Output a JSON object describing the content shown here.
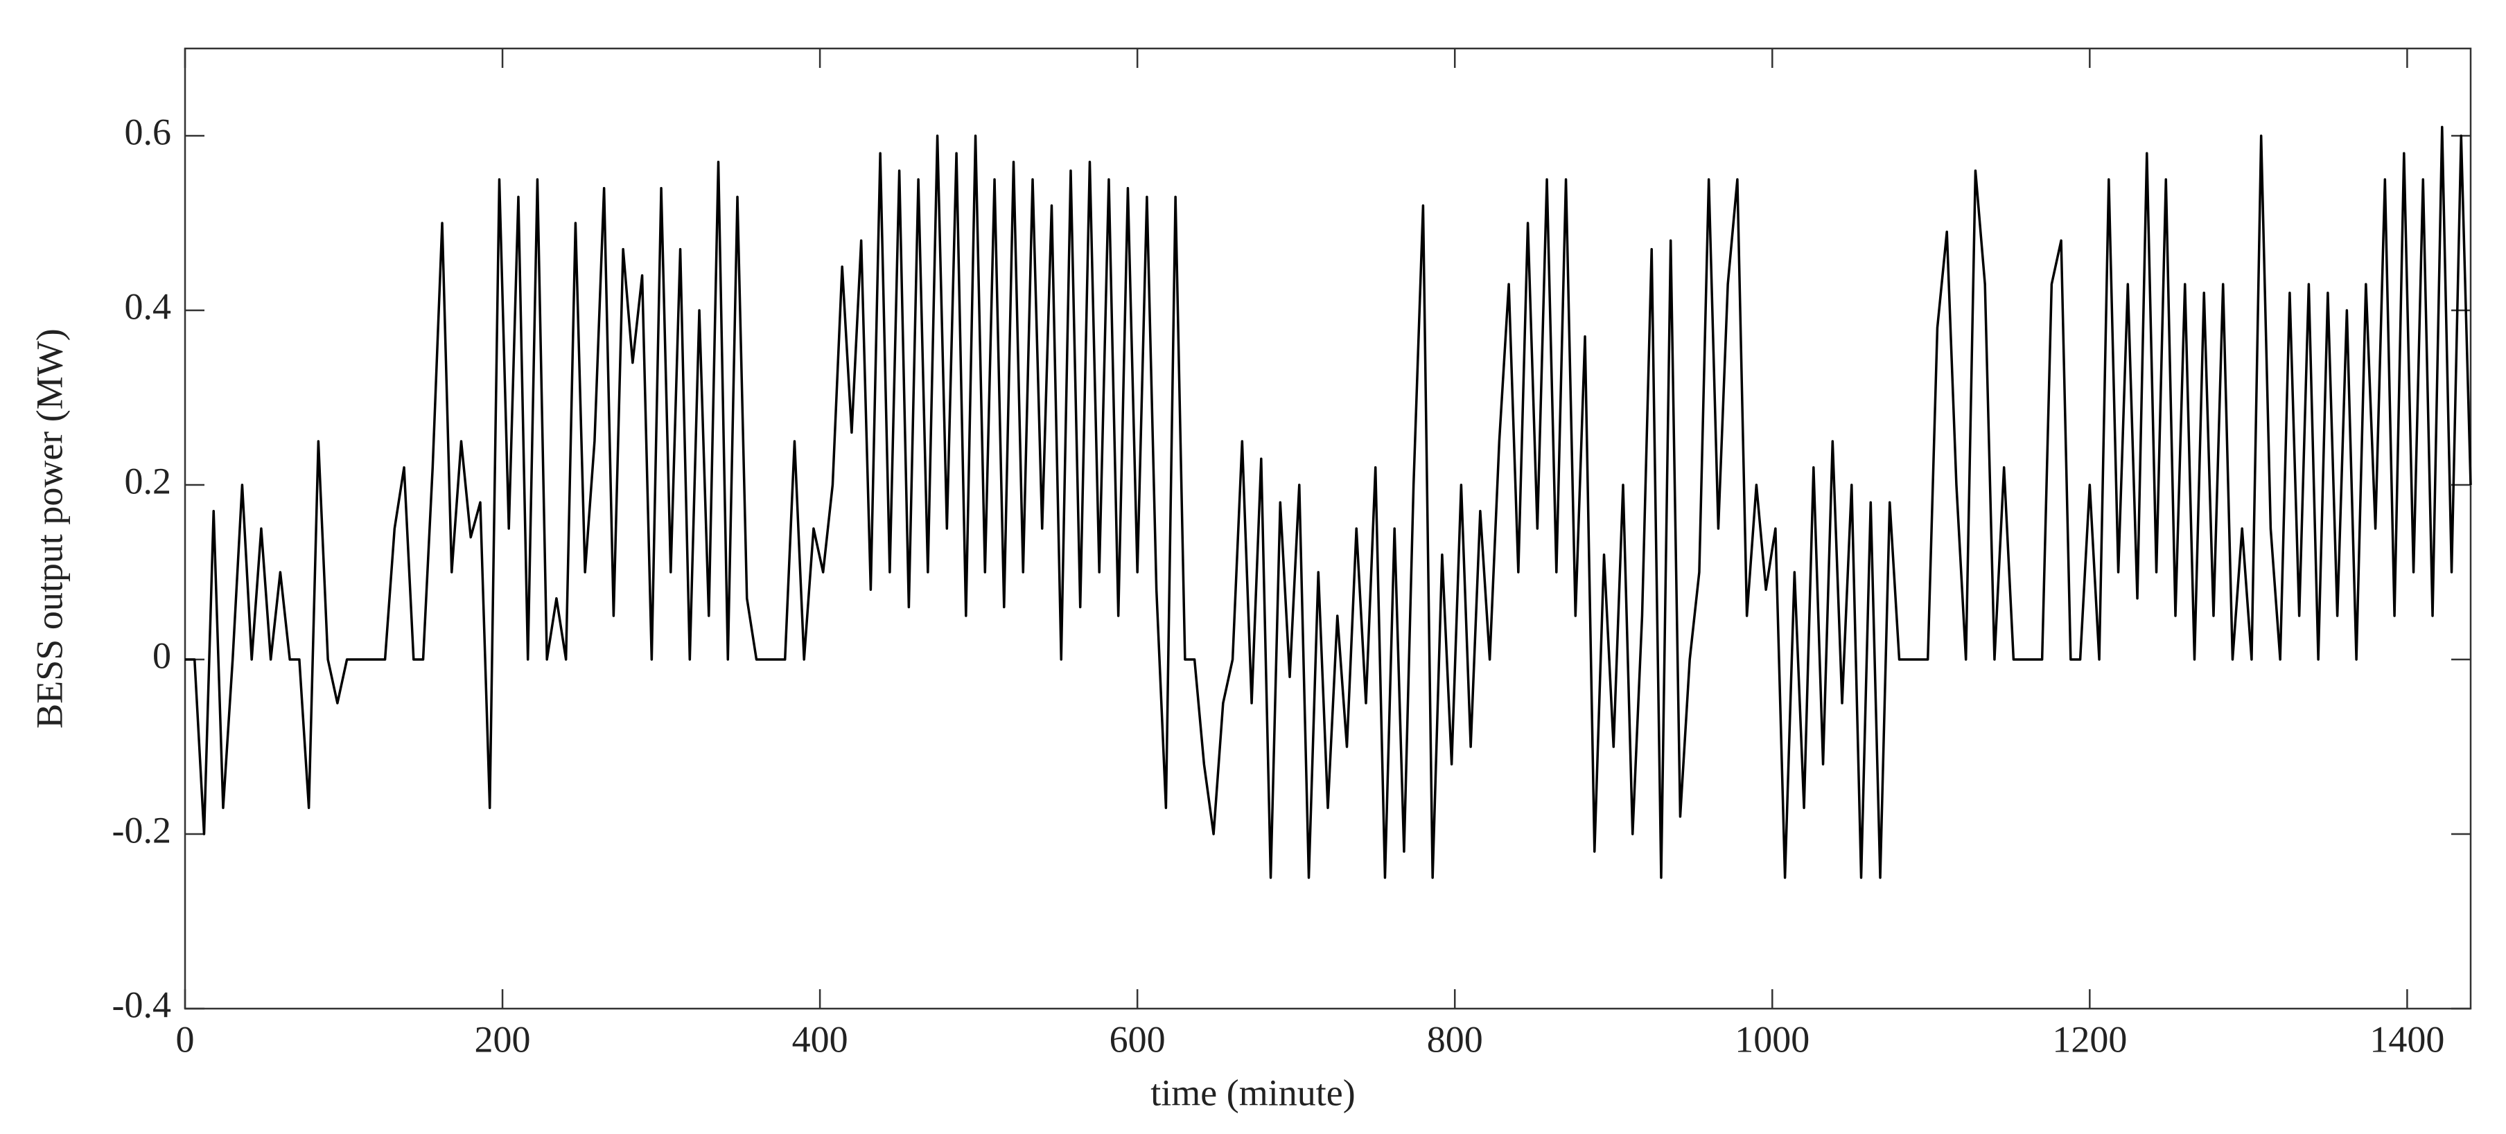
{
  "chart_data": {
    "type": "line",
    "xlabel": "time (minute)",
    "ylabel": "BESS output power (MW)",
    "xlim": [
      0,
      1440
    ],
    "xticks": [
      0,
      200,
      400,
      600,
      800,
      1000,
      1200,
      1400
    ],
    "ylim": [
      -0.4,
      0.7
    ],
    "yticks": [
      -0.4,
      -0.2,
      0,
      0.2,
      0.4,
      0.6
    ],
    "x": [
      0,
      6,
      12,
      18,
      24,
      30,
      36,
      42,
      48,
      54,
      60,
      66,
      72,
      78,
      84,
      90,
      96,
      102,
      108,
      114,
      120,
      126,
      132,
      138,
      144,
      150,
      156,
      162,
      168,
      174,
      180,
      186,
      192,
      198,
      204,
      210,
      216,
      222,
      228,
      234,
      240,
      246,
      252,
      258,
      264,
      270,
      276,
      282,
      288,
      294,
      300,
      306,
      312,
      318,
      324,
      330,
      336,
      342,
      348,
      354,
      360,
      366,
      372,
      378,
      384,
      390,
      396,
      402,
      408,
      414,
      420,
      426,
      432,
      438,
      444,
      450,
      456,
      462,
      468,
      474,
      480,
      486,
      492,
      498,
      504,
      510,
      516,
      522,
      528,
      534,
      540,
      546,
      552,
      558,
      564,
      570,
      576,
      582,
      588,
      594,
      600,
      606,
      612,
      618,
      624,
      630,
      636,
      642,
      648,
      654,
      660,
      666,
      672,
      678,
      684,
      690,
      696,
      702,
      708,
      714,
      720,
      726,
      732,
      738,
      744,
      750,
      756,
      762,
      768,
      774,
      780,
      786,
      792,
      798,
      804,
      810,
      816,
      822,
      828,
      834,
      840,
      846,
      852,
      858,
      864,
      870,
      876,
      882,
      888,
      894,
      900,
      906,
      912,
      918,
      924,
      930,
      936,
      942,
      948,
      954,
      960,
      966,
      972,
      978,
      984,
      990,
      996,
      1002,
      1008,
      1014,
      1020,
      1026,
      1032,
      1038,
      1044,
      1050,
      1056,
      1062,
      1068,
      1074,
      1080,
      1086,
      1092,
      1098,
      1104,
      1110,
      1116,
      1122,
      1128,
      1134,
      1140,
      1146,
      1152,
      1158,
      1164,
      1170,
      1176,
      1182,
      1188,
      1194,
      1200,
      1206,
      1212,
      1218,
      1224,
      1230,
      1236,
      1242,
      1248,
      1254,
      1260,
      1266,
      1272,
      1278,
      1284,
      1290,
      1296,
      1302,
      1308,
      1314,
      1320,
      1326,
      1332,
      1338,
      1344,
      1350,
      1356,
      1362,
      1368,
      1374,
      1380,
      1386,
      1392,
      1398,
      1404,
      1410,
      1416,
      1422,
      1428,
      1434,
      1440
    ],
    "series": [
      {
        "color": "#000000",
        "values": [
          0,
          0,
          -0.2,
          0.17,
          -0.17,
          0,
          0.2,
          0,
          0.15,
          0,
          0.1,
          0,
          0,
          -0.17,
          0.25,
          0,
          -0.05,
          0,
          0,
          0,
          0,
          0,
          0.15,
          0.22,
          0,
          0,
          0.22,
          0.5,
          0.1,
          0.25,
          0.14,
          0.18,
          -0.17,
          0.55,
          0.15,
          0.53,
          0,
          0.55,
          0,
          0.07,
          0,
          0.5,
          0.1,
          0.25,
          0.54,
          0.05,
          0.47,
          0.34,
          0.44,
          0,
          0.54,
          0.1,
          0.47,
          0,
          0.4,
          0.05,
          0.57,
          0,
          0.53,
          0.07,
          0,
          0,
          0,
          0,
          0.25,
          0,
          0.15,
          0.1,
          0.2,
          0.45,
          0.26,
          0.48,
          0.08,
          0.58,
          0.1,
          0.56,
          0.06,
          0.55,
          0.1,
          0.6,
          0.15,
          0.58,
          0.05,
          0.6,
          0.1,
          0.55,
          0.06,
          0.57,
          0.1,
          0.55,
          0.15,
          0.52,
          0,
          0.56,
          0.06,
          0.57,
          0.1,
          0.55,
          0.05,
          0.54,
          0.1,
          0.53,
          0.08,
          -0.17,
          0.53,
          0,
          0,
          -0.12,
          -0.2,
          -0.05,
          0,
          0.25,
          -0.05,
          0.23,
          -0.25,
          0.18,
          -0.02,
          0.2,
          -0.25,
          0.1,
          -0.17,
          0.05,
          -0.1,
          0.15,
          -0.05,
          0.22,
          -0.25,
          0.15,
          -0.22,
          0.2,
          0.52,
          -0.25,
          0.12,
          -0.12,
          0.2,
          -0.1,
          0.17,
          0,
          0.25,
          0.43,
          0.1,
          0.5,
          0.15,
          0.55,
          0.1,
          0.55,
          0.05,
          0.37,
          -0.22,
          0.12,
          -0.1,
          0.2,
          -0.2,
          0.05,
          0.47,
          -0.25,
          0.48,
          -0.18,
          0,
          0.1,
          0.55,
          0.15,
          0.43,
          0.55,
          0.05,
          0.2,
          0.08,
          0.15,
          -0.25,
          0.1,
          -0.17,
          0.22,
          -0.12,
          0.25,
          -0.05,
          0.2,
          -0.25,
          0.18,
          -0.25,
          0.18,
          0,
          0,
          0,
          0,
          0.38,
          0.49,
          0.2,
          0,
          0.56,
          0.43,
          0,
          0.22,
          0,
          0,
          0,
          0,
          0.43,
          0.48,
          0,
          0,
          0.2,
          0,
          0.55,
          0.1,
          0.43,
          0.07,
          0.58,
          0.1,
          0.55,
          0.05,
          0.43,
          0,
          0.42,
          0.05,
          0.43,
          0,
          0.15,
          0,
          0.6,
          0.15,
          0,
          0.42,
          0.05,
          0.43,
          0,
          0.42,
          0.05,
          0.4,
          0,
          0.43,
          0.15,
          0.55,
          0.05,
          0.58,
          0.1,
          0.55,
          0.05,
          0.61,
          0.1,
          0.6,
          0.2
        ]
      }
    ]
  }
}
